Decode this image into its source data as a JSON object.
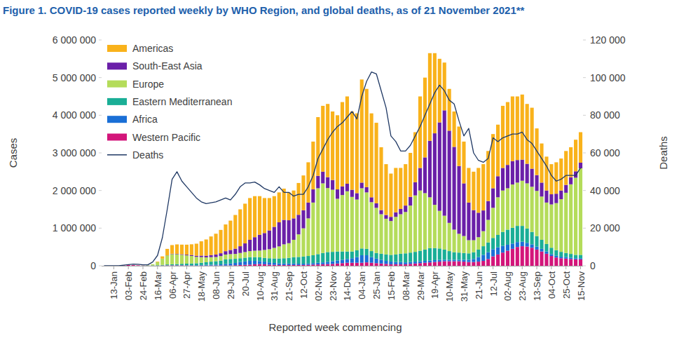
{
  "chart_data": {
    "type": "bar",
    "title": "Figure 1. COVID-19 cases reported weekly by WHO Region, and global deaths, as of 21 November 2021**",
    "x_label": "Reported week commencing",
    "y_label": "Cases",
    "y2_label": "Deaths",
    "stacked": true,
    "grid": false,
    "legend": "upper left",
    "categories": [
      null,
      null,
      "13-Jan",
      null,
      null,
      "03-Feb",
      null,
      null,
      "24-Feb",
      null,
      null,
      "16-Mar",
      null,
      null,
      "06-Apr",
      null,
      null,
      "27-Apr",
      null,
      null,
      "18-May",
      null,
      null,
      "08-Jun",
      null,
      null,
      "29-Jun",
      null,
      null,
      "20-Jul",
      null,
      null,
      "10-Aug",
      null,
      null,
      "31-Aug",
      null,
      null,
      "21-Sep",
      null,
      null,
      "12-Oct",
      null,
      null,
      "02-Nov",
      null,
      null,
      "23-Nov",
      null,
      null,
      "14-Dec",
      null,
      null,
      "04-Jan",
      null,
      null,
      "25-Jan",
      null,
      null,
      "15-Feb",
      null,
      null,
      "08-Mar",
      null,
      null,
      "29-Mar",
      null,
      null,
      "19-Apr",
      null,
      null,
      "10-May",
      null,
      null,
      "31-May",
      null,
      null,
      "21-Jun",
      null,
      null,
      "12-Jul",
      null,
      null,
      "02-Aug",
      null,
      null,
      "23-Aug",
      null,
      null,
      "13-Sep",
      null,
      null,
      "04-Oct",
      null,
      null,
      "25-Oct",
      null,
      null,
      "15-Nov"
    ],
    "ylim": [
      0,
      6000000
    ],
    "yticks": [
      0,
      {
        "value": 1000000,
        "label": "1 000 000"
      },
      {
        "value": 2000000,
        "label": "2 000 000"
      },
      {
        "value": 3000000,
        "label": "3 000 000"
      },
      {
        "value": 4000000,
        "label": "4 000 000"
      },
      {
        "value": 5000000,
        "label": "5 000 000"
      },
      {
        "value": 6000000,
        "label": "6 000 000"
      }
    ],
    "y2lim": [
      0,
      120000
    ],
    "y2ticks": [
      0,
      {
        "value": 20000,
        "label": "20 000"
      },
      {
        "value": 40000,
        "label": "40 000"
      },
      {
        "value": 60000,
        "label": "60 000"
      },
      {
        "value": 80000,
        "label": "80 000"
      },
      {
        "value": 100000,
        "label": "100 000"
      },
      {
        "value": 120000,
        "label": "120 000"
      }
    ],
    "series": [
      {
        "name": "Americas",
        "color": "#f9b21b",
        "type": "bar",
        "values": [
          0,
          0,
          0,
          0,
          0,
          0,
          0,
          0,
          0,
          500,
          2000,
          15000,
          60000,
          170000,
          230000,
          250000,
          255000,
          265000,
          285000,
          320000,
          380000,
          430000,
          495000,
          555000,
          620000,
          710000,
          780000,
          895000,
          980000,
          1055000,
          1110000,
          1090000,
          1025000,
          930000,
          860000,
          815000,
          795000,
          830000,
          740000,
          740000,
          845000,
          925000,
          1070000,
          1270000,
          1560000,
          1750000,
          1945000,
          1820000,
          1970000,
          2240000,
          2320000,
          2080000,
          2120000,
          2740000,
          2610000,
          2230000,
          2140000,
          1670000,
          1350000,
          1150000,
          1180000,
          1090000,
          1100000,
          1170000,
          1330000,
          1900000,
          2120000,
          2330000,
          2130000,
          1690000,
          1270000,
          1110000,
          940000,
          1050000,
          1110000,
          920000,
          1020000,
          1190000,
          1230000,
          1330000,
          1440000,
          1370000,
          1650000,
          1670000,
          1720000,
          1690000,
          1730000,
          1590000,
          1620000,
          1240000,
          1040000,
          900000,
          800000,
          835000,
          850000,
          900000,
          795000,
          840000,
          810000
        ]
      },
      {
        "name": "South-East Asia",
        "color": "#6a1fa8",
        "type": "bar",
        "values": [
          0,
          0,
          0,
          0,
          0,
          0,
          0,
          0,
          0,
          0,
          200,
          500,
          1000,
          4000,
          10000,
          12000,
          15000,
          20000,
          25000,
          30000,
          40000,
          45000,
          55000,
          65000,
          75000,
          90000,
          110000,
          140000,
          180000,
          230000,
          300000,
          360000,
          420000,
          450000,
          500000,
          560000,
          640000,
          650000,
          610000,
          570000,
          520000,
          480000,
          420000,
          350000,
          330000,
          310000,
          290000,
          260000,
          250000,
          230000,
          200000,
          190000,
          170000,
          150000,
          140000,
          130000,
          120000,
          110000,
          100000,
          110000,
          120000,
          140000,
          170000,
          230000,
          350000,
          600000,
          950000,
          1500000,
          1900000,
          2350000,
          2800000,
          2450000,
          2200000,
          1800000,
          1400000,
          1000000,
          800000,
          650000,
          550000,
          500000,
          520000,
          560000,
          600000,
          620000,
          620000,
          600000,
          560000,
          520000,
          480000,
          420000,
          370000,
          320000,
          270000,
          250000,
          230000,
          210000,
          190000,
          170000,
          150000
        ]
      },
      {
        "name": "Europe",
        "color": "#b4dc5a",
        "type": "bar",
        "values": [
          0,
          0,
          0,
          0,
          0,
          0,
          0,
          0,
          2000,
          6000,
          27000,
          80000,
          165000,
          240000,
          270000,
          260000,
          240000,
          220000,
          200000,
          170000,
          150000,
          130000,
          120000,
          110000,
          120000,
          130000,
          130000,
          130000,
          140000,
          150000,
          160000,
          170000,
          180000,
          210000,
          240000,
          280000,
          320000,
          370000,
          390000,
          460000,
          600000,
          750000,
          1000000,
          1400000,
          1750000,
          1850000,
          1700000,
          1650000,
          1400000,
          1500000,
          1600000,
          1450000,
          1350000,
          1600000,
          1500000,
          1300000,
          1200000,
          1050000,
          950000,
          900000,
          1000000,
          1050000,
          1100000,
          1250000,
          1500000,
          1600000,
          1500000,
          1350000,
          1150000,
          1000000,
          900000,
          750000,
          600000,
          500000,
          450000,
          350000,
          320000,
          330000,
          400000,
          600000,
          800000,
          1000000,
          1100000,
          1100000,
          1150000,
          1150000,
          1200000,
          1200000,
          1200000,
          1200000,
          1150000,
          1100000,
          1150000,
          1250000,
          1400000,
          1600000,
          1850000,
          2050000,
          2300000
        ]
      },
      {
        "name": "Eastern Mediterranean",
        "color": "#1aae96",
        "type": "bar",
        "values": [
          0,
          0,
          0,
          0,
          0,
          0,
          0,
          0,
          2000,
          5000,
          8000,
          10000,
          15000,
          22000,
          25000,
          30000,
          35000,
          40000,
          45000,
          50000,
          60000,
          70000,
          80000,
          90000,
          100000,
          120000,
          120000,
          110000,
          100000,
          100000,
          100000,
          100000,
          100000,
          100000,
          110000,
          120000,
          130000,
          140000,
          150000,
          170000,
          180000,
          190000,
          200000,
          210000,
          230000,
          250000,
          260000,
          250000,
          240000,
          220000,
          200000,
          180000,
          180000,
          180000,
          170000,
          160000,
          150000,
          160000,
          170000,
          180000,
          200000,
          220000,
          240000,
          250000,
          260000,
          280000,
          300000,
          330000,
          320000,
          300000,
          270000,
          230000,
          200000,
          190000,
          180000,
          170000,
          180000,
          200000,
          230000,
          260000,
          300000,
          330000,
          370000,
          400000,
          420000,
          430000,
          420000,
          380000,
          330000,
          280000,
          240000,
          200000,
          170000,
          150000,
          130000,
          110000,
          100000,
          90000,
          90000
        ]
      },
      {
        "name": "Africa",
        "color": "#1a6fd6",
        "type": "bar",
        "values": [
          0,
          0,
          0,
          0,
          0,
          0,
          0,
          0,
          0,
          0,
          100,
          500,
          1000,
          3000,
          5000,
          6000,
          7000,
          8000,
          10000,
          12000,
          14000,
          18000,
          22000,
          25000,
          30000,
          40000,
          50000,
          60000,
          80000,
          90000,
          100000,
          90000,
          80000,
          70000,
          60000,
          50000,
          45000,
          40000,
          40000,
          40000,
          35000,
          35000,
          35000,
          40000,
          45000,
          50000,
          60000,
          70000,
          80000,
          90000,
          100000,
          120000,
          150000,
          200000,
          190000,
          150000,
          120000,
          100000,
          80000,
          70000,
          60000,
          60000,
          50000,
          50000,
          50000,
          50000,
          50000,
          50000,
          50000,
          50000,
          40000,
          40000,
          40000,
          40000,
          50000,
          60000,
          80000,
          120000,
          160000,
          180000,
          190000,
          190000,
          180000,
          160000,
          140000,
          130000,
          120000,
          100000,
          90000,
          80000,
          70000,
          60000,
          50000,
          45000,
          40000,
          40000,
          35000,
          30000,
          30000
        ]
      },
      {
        "name": "Western Pacific",
        "color": "#d3157a",
        "type": "bar",
        "values": [
          0,
          0,
          0,
          1000,
          12000,
          20000,
          18000,
          12000,
          5000,
          4000,
          3000,
          5000,
          8000,
          10000,
          10000,
          10000,
          10000,
          8000,
          6000,
          5000,
          6000,
          6000,
          7000,
          7000,
          8000,
          8000,
          10000,
          15000,
          20000,
          25000,
          30000,
          40000,
          45000,
          40000,
          30000,
          25000,
          20000,
          20000,
          20000,
          20000,
          20000,
          20000,
          25000,
          30000,
          35000,
          40000,
          45000,
          50000,
          60000,
          70000,
          80000,
          80000,
          80000,
          80000,
          90000,
          80000,
          70000,
          60000,
          50000,
          40000,
          40000,
          40000,
          40000,
          50000,
          60000,
          70000,
          80000,
          90000,
          100000,
          110000,
          120000,
          120000,
          120000,
          120000,
          110000,
          100000,
          100000,
          110000,
          130000,
          180000,
          250000,
          300000,
          350000,
          400000,
          450000,
          500000,
          520000,
          510000,
          480000,
          430000,
          380000,
          320000,
          260000,
          220000,
          200000,
          190000,
          180000,
          170000,
          170000
        ]
      },
      {
        "name": "Deaths",
        "color": "#1f3864",
        "type": "line",
        "axis": "y2",
        "values": [
          0,
          0,
          0,
          0,
          300,
          600,
          900,
          800,
          500,
          500,
          2000,
          5500,
          15000,
          30000,
          46000,
          50000,
          45000,
          42000,
          39000,
          36000,
          34000,
          33000,
          33500,
          34000,
          35000,
          36000,
          35000,
          38000,
          42000,
          44000,
          44000,
          44500,
          43000,
          41000,
          40000,
          39000,
          42000,
          39000,
          39000,
          37000,
          38000,
          38000,
          42000,
          48000,
          57000,
          62000,
          67000,
          71000,
          74000,
          76000,
          79000,
          82000,
          78000,
          90000,
          98000,
          103000,
          102000,
          93000,
          84000,
          69000,
          66000,
          61000,
          61000,
          64000,
          69000,
          74000,
          80000,
          86000,
          92000,
          96000,
          93000,
          88000,
          86000,
          77000,
          69000,
          73000,
          60000,
          56000,
          55000,
          57000,
          68000,
          66000,
          68000,
          69000,
          70000,
          70000,
          71000,
          67000,
          65000,
          61000,
          57000,
          53000,
          48000,
          45000,
          46000,
          48000,
          48000,
          48000,
          52000
        ]
      }
    ]
  }
}
